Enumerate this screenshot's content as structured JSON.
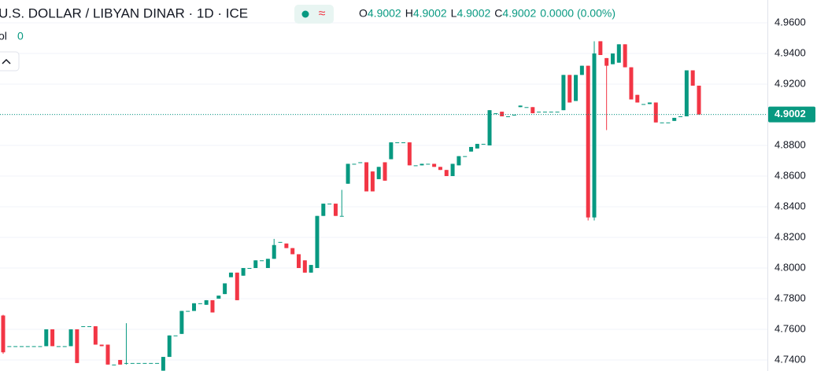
{
  "chart_data": {
    "type": "candlestick",
    "title": "U.S. DOLLAR / LIBYAN DINAR · 1D · ICE",
    "ohlc_legend": [
      {
        "key": "O",
        "text": "4.9002"
      },
      {
        "key": "H",
        "text": "4.9002"
      },
      {
        "key": "L",
        "text": "4.9002"
      },
      {
        "key": "C",
        "text": "4.9002"
      }
    ],
    "change": "0.0000 (0.00%)",
    "volume_label": "ol",
    "volume_value": "0",
    "up_color": "#089981",
    "down_color": "#f23645",
    "last_price": 4.9002,
    "ylim": [
      4.7328,
      4.9749
    ],
    "yticks": [
      {
        "value": 4.74,
        "label": "4.7400"
      },
      {
        "value": 4.76,
        "label": "4.7600"
      },
      {
        "value": 4.78,
        "label": "4.7800"
      },
      {
        "value": 4.8,
        "label": "4.8000"
      },
      {
        "value": 4.82,
        "label": "4.8200"
      },
      {
        "value": 4.84,
        "label": "4.8400"
      },
      {
        "value": 4.86,
        "label": "4.8600"
      },
      {
        "value": 4.88,
        "label": "4.8800"
      },
      {
        "value": 4.9,
        "label": "4.9000"
      },
      {
        "value": 4.92,
        "label": "4.9200"
      },
      {
        "value": 4.94,
        "label": "4.9400"
      },
      {
        "value": 4.96,
        "label": "4.9600"
      }
    ],
    "grid": true,
    "open": [
      4.769,
      4.749,
      4.749,
      4.749,
      4.749,
      4.749,
      4.749,
      4.749,
      4.76,
      4.749,
      4.749,
      4.749,
      4.76,
      4.762,
      4.762,
      4.762,
      4.75,
      4.75,
      4.737,
      4.74,
      4.738,
      4.738,
      4.738,
      4.738,
      4.738,
      4.738,
      4.733,
      4.742,
      4.756,
      4.757,
      4.772,
      4.772,
      4.777,
      4.776,
      4.779,
      4.78,
      4.783,
      4.794,
      4.797,
      4.795,
      4.8,
      4.8,
      4.805,
      4.8,
      4.806,
      4.817,
      4.816,
      4.813,
      4.809,
      4.805,
      4.797,
      4.8,
      4.834,
      4.842,
      4.842,
      4.834,
      4.855,
      4.868,
      4.869,
      4.869,
      4.863,
      4.858,
      4.869,
      4.871,
      4.882,
      4.882,
      4.882,
      4.867,
      4.867,
      4.868,
      4.868,
      4.866,
      4.864,
      4.86,
      4.867,
      4.873,
      4.876,
      4.878,
      4.881,
      4.88,
      4.901,
      4.902,
      4.899,
      4.9,
      4.905,
      4.905,
      4.905,
      4.902,
      4.902,
      4.902,
      4.902,
      4.903,
      4.926,
      4.909,
      4.926,
      4.932,
      4.833,
      4.948,
      4.937,
      4.933,
      4.934,
      4.946,
      4.931,
      4.913,
      4.907,
      4.907,
      4.908,
      4.895,
      4.895,
      4.896,
      4.899,
      4.899,
      4.929,
      4.919
    ],
    "high": [
      4.7695,
      4.749,
      4.749,
      4.749,
      4.749,
      4.749,
      4.749,
      4.76,
      4.76,
      4.749,
      4.749,
      4.76,
      4.76,
      4.762,
      4.762,
      4.762,
      4.75,
      4.75,
      4.737,
      4.74,
      4.764,
      4.738,
      4.738,
      4.738,
      4.738,
      4.738,
      4.742,
      4.756,
      4.756,
      4.772,
      4.772,
      4.777,
      4.777,
      4.779,
      4.779,
      4.782,
      4.79,
      4.797,
      4.797,
      4.8,
      4.8,
      4.805,
      4.805,
      4.806,
      4.819,
      4.817,
      4.816,
      4.813,
      4.809,
      4.805,
      4.802,
      4.834,
      4.842,
      4.842,
      4.842,
      4.851,
      4.868,
      4.868,
      4.869,
      4.869,
      4.863,
      4.866,
      4.869,
      4.882,
      4.882,
      4.882,
      4.882,
      4.867,
      4.868,
      4.868,
      4.868,
      4.866,
      4.864,
      4.868,
      4.873,
      4.873,
      4.879,
      4.881,
      4.881,
      4.903,
      4.901,
      4.902,
      4.899,
      4.9,
      4.906,
      4.905,
      4.905,
      4.902,
      4.902,
      4.902,
      4.902,
      4.926,
      4.926,
      4.926,
      4.932,
      4.932,
      4.948,
      4.948,
      4.937,
      4.94,
      4.946,
      4.946,
      4.931,
      4.913,
      4.907,
      4.908,
      4.908,
      4.895,
      4.895,
      4.898,
      4.899,
      4.929,
      4.929,
      4.919
    ],
    "low": [
      4.744,
      4.749,
      4.749,
      4.749,
      4.749,
      4.749,
      4.749,
      4.749,
      4.749,
      4.749,
      4.749,
      4.749,
      4.738,
      4.762,
      4.762,
      4.75,
      4.749,
      4.737,
      4.737,
      4.737,
      4.737,
      4.738,
      4.738,
      4.738,
      4.738,
      4.738,
      4.733,
      4.742,
      4.756,
      4.757,
      4.772,
      4.772,
      4.777,
      4.776,
      4.771,
      4.78,
      4.783,
      4.794,
      4.779,
      4.795,
      4.8,
      4.8,
      4.805,
      4.8,
      4.806,
      4.817,
      4.813,
      4.809,
      4.8,
      4.797,
      4.797,
      4.8,
      4.834,
      4.842,
      4.834,
      4.834,
      4.855,
      4.868,
      4.869,
      4.85,
      4.85,
      4.858,
      4.857,
      4.871,
      4.882,
      4.882,
      4.867,
      4.867,
      4.867,
      4.868,
      4.866,
      4.864,
      4.86,
      4.86,
      4.867,
      4.873,
      4.876,
      4.878,
      4.881,
      4.88,
      4.901,
      4.899,
      4.899,
      4.9,
      4.905,
      4.905,
      4.901,
      4.902,
      4.902,
      4.902,
      4.902,
      4.903,
      4.908,
      4.909,
      4.926,
      4.831,
      4.831,
      4.939,
      4.89,
      4.933,
      4.934,
      4.931,
      4.91,
      4.908,
      4.907,
      4.907,
      4.895,
      4.895,
      4.895,
      4.896,
      4.899,
      4.899,
      4.919,
      4.9
    ],
    "close": [
      4.745,
      4.749,
      4.749,
      4.749,
      4.749,
      4.749,
      4.749,
      4.76,
      4.749,
      4.749,
      4.749,
      4.76,
      4.738,
      4.762,
      4.762,
      4.75,
      4.749,
      4.737,
      4.737,
      4.737,
      4.738,
      4.738,
      4.738,
      4.738,
      4.738,
      4.738,
      4.742,
      4.756,
      4.756,
      4.772,
      4.772,
      4.777,
      4.777,
      4.779,
      4.771,
      4.782,
      4.79,
      4.797,
      4.779,
      4.8,
      4.8,
      4.805,
      4.805,
      4.806,
      4.815,
      4.817,
      4.813,
      4.809,
      4.8,
      4.797,
      4.802,
      4.834,
      4.842,
      4.842,
      4.834,
      4.834,
      4.868,
      4.868,
      4.869,
      4.85,
      4.85,
      4.866,
      4.857,
      4.882,
      4.882,
      4.882,
      4.867,
      4.867,
      4.868,
      4.868,
      4.866,
      4.864,
      4.86,
      4.868,
      4.873,
      4.873,
      4.879,
      4.881,
      4.881,
      4.903,
      4.901,
      4.899,
      4.899,
      4.9,
      4.906,
      4.905,
      4.901,
      4.902,
      4.902,
      4.902,
      4.902,
      4.926,
      4.908,
      4.926,
      4.932,
      4.833,
      4.94,
      4.939,
      4.932,
      4.94,
      4.946,
      4.931,
      4.91,
      4.908,
      4.907,
      4.908,
      4.895,
      4.895,
      4.895,
      4.898,
      4.899,
      4.929,
      4.919,
      4.9002
    ]
  }
}
